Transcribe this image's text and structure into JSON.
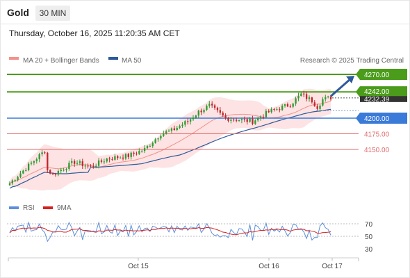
{
  "header": {
    "symbol": "Gold",
    "timeframe": "30 MIN",
    "datetime": "Thursday, October 16, 2025 11:20:35 AM CET"
  },
  "legend": {
    "ma20": "MA 20 + Bollinger Bands",
    "ma50": "MA 50",
    "credit": "Research © 2025 Trading Central",
    "rsi": "RSI",
    "rsi_ma": "9MA"
  },
  "colors": {
    "ma20": "#f2928a",
    "ma50": "#2e5a9c",
    "band_fill": "#fde3e3",
    "up_candle": "#2e9a33",
    "down_candle": "#c0262d",
    "target_green": "#4a9c1a",
    "pivot_blue": "#3a7ad8",
    "support_red": "#e06a6a",
    "current_price_bg": "#333333",
    "rsi_line": "#5b8fd9",
    "rsi_ma_line": "#d62020"
  },
  "chart_data": {
    "type": "candlestick",
    "title": "Gold",
    "timeframe": "30 MIN",
    "x_axis_labels": [
      "Oct 15",
      "Oct 16",
      "Oct 17"
    ],
    "price_range": [
      4080,
      4290
    ],
    "levels": [
      {
        "label": "4270.00",
        "value": 4270,
        "kind": "resistance"
      },
      {
        "label": "4242.00",
        "value": 4242,
        "kind": "resistance"
      },
      {
        "label": "4200.00",
        "value": 4200,
        "kind": "pivot"
      },
      {
        "label": "4175.00",
        "value": 4175,
        "kind": "support"
      },
      {
        "label": "4150.00",
        "value": 4150,
        "kind": "support"
      }
    ],
    "current_price": {
      "label": "4232.39",
      "value": 4232.39
    },
    "outlook_arrow": {
      "from": 4235,
      "to": 4270
    },
    "rsi": {
      "levels": [
        70,
        50,
        30
      ],
      "range": [
        20,
        80
      ]
    }
  }
}
